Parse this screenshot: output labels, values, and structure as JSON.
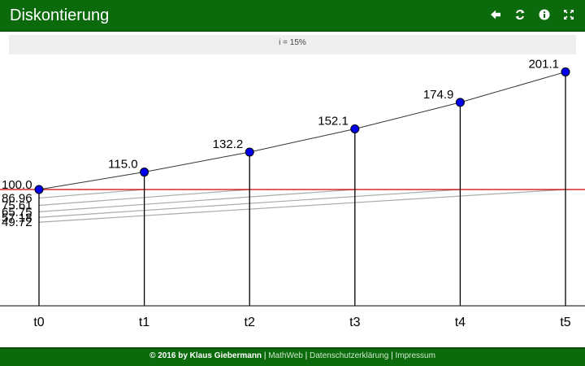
{
  "header": {
    "title": "Diskontierung",
    "icons": [
      "arrow-left-icon",
      "refresh-icon",
      "info-icon",
      "fullscreen-icon"
    ]
  },
  "rate_bar": {
    "label": "i = 15%"
  },
  "chart_data": {
    "type": "line",
    "rate_percent": 15,
    "x_labels": [
      "t0",
      "t1",
      "t2",
      "t3",
      "t4",
      "t5"
    ],
    "future_values": [
      100.0,
      115.0,
      132.2,
      152.1,
      174.9,
      201.1
    ],
    "future_value_labels": [
      "100.0",
      "115.0",
      "132.2",
      "152.1",
      "174.9",
      "201.1"
    ],
    "present_values": [
      100.0,
      86.96,
      75.61,
      65.75,
      57.18,
      49.72
    ],
    "present_value_labels": [
      "86.96",
      "75.61",
      "65.75",
      "57.18",
      "49.72"
    ],
    "baseline_value": 100.0,
    "colors": {
      "growth_line": "#333333",
      "point_fill": "#0000ee",
      "baseline": "#cc0000",
      "discount_curves": "#aaaaaa",
      "axis": "#000000"
    }
  },
  "footer": {
    "copyright": "© 2016 by Klaus Giebermann",
    "links": [
      "MathWeb",
      "Datenschutzerklärung",
      "Impressum"
    ],
    "separator": "|"
  },
  "colors": {
    "header_bg": "#0b6a0b",
    "footer_bg": "#0b6a0b",
    "rate_bar_bg": "#efefef"
  }
}
